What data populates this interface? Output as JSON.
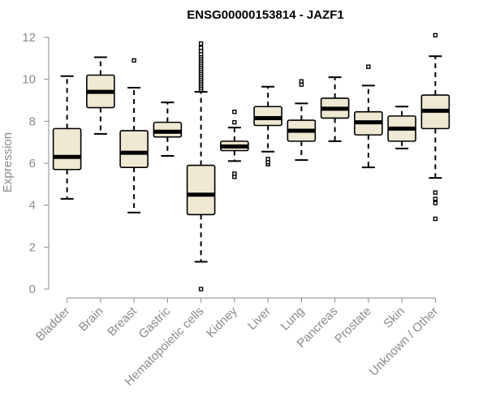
{
  "chart_data": {
    "type": "boxplot",
    "title": "ENSG00000153814 - JAZF1",
    "xlabel": "",
    "ylabel": "Expression",
    "ylim": [
      0,
      12
    ],
    "yticks": [
      0,
      2,
      4,
      6,
      8,
      10,
      12
    ],
    "grid": false,
    "legend": "none",
    "colors": {
      "box_fill": "#efe8d2",
      "stroke": "#000000",
      "axis": "#8a8a8a"
    },
    "categories": [
      "Bladder",
      "Brain",
      "Breast",
      "Gastric",
      "Hematopoietic cells",
      "Kidney",
      "Liver",
      "Lung",
      "Pancreas",
      "Prostate",
      "Skin",
      "Unknown / Other"
    ],
    "boxes": [
      {
        "category": "Bladder",
        "whisker_low": 4.3,
        "q1": 5.7,
        "median": 6.3,
        "q3": 7.65,
        "whisker_high": 10.15,
        "outliers": []
      },
      {
        "category": "Brain",
        "whisker_low": 7.4,
        "q1": 8.65,
        "median": 9.4,
        "q3": 10.2,
        "whisker_high": 11.05,
        "outliers": []
      },
      {
        "category": "Breast",
        "whisker_low": 3.65,
        "q1": 5.8,
        "median": 6.5,
        "q3": 7.55,
        "whisker_high": 9.6,
        "outliers": [
          10.9
        ]
      },
      {
        "category": "Gastric",
        "whisker_low": 6.35,
        "q1": 7.25,
        "median": 7.5,
        "q3": 7.95,
        "whisker_high": 8.9,
        "outliers": []
      },
      {
        "category": "Hematopoietic cells",
        "whisker_low": 1.3,
        "q1": 3.55,
        "median": 4.5,
        "q3": 5.9,
        "whisker_high": 9.4,
        "outliers": [
          0.0,
          9.5,
          9.6,
          9.7,
          9.8,
          9.9,
          10.0,
          10.1,
          10.2,
          10.3,
          10.4,
          10.5,
          10.6,
          10.7,
          10.8,
          10.9,
          11.0,
          11.1,
          11.2,
          11.35,
          11.5,
          11.7
        ]
      },
      {
        "category": "Kidney",
        "whisker_low": 6.1,
        "q1": 6.6,
        "median": 6.8,
        "q3": 7.05,
        "whisker_high": 7.7,
        "outliers": [
          5.35,
          5.5,
          7.95,
          8.45
        ]
      },
      {
        "category": "Liver",
        "whisker_low": 6.55,
        "q1": 7.8,
        "median": 8.15,
        "q3": 8.7,
        "whisker_high": 9.65,
        "outliers": [
          5.95,
          6.05,
          6.2
        ]
      },
      {
        "category": "Lung",
        "whisker_low": 6.15,
        "q1": 7.05,
        "median": 7.55,
        "q3": 8.05,
        "whisker_high": 8.85,
        "outliers": [
          9.75,
          9.9
        ]
      },
      {
        "category": "Pancreas",
        "whisker_low": 7.05,
        "q1": 8.15,
        "median": 8.6,
        "q3": 9.1,
        "whisker_high": 10.1,
        "outliers": []
      },
      {
        "category": "Prostate",
        "whisker_low": 5.8,
        "q1": 7.35,
        "median": 7.95,
        "q3": 8.45,
        "whisker_high": 9.7,
        "outliers": [
          10.6
        ]
      },
      {
        "category": "Skin",
        "whisker_low": 6.7,
        "q1": 7.05,
        "median": 7.65,
        "q3": 8.25,
        "whisker_high": 8.7,
        "outliers": []
      },
      {
        "category": "Unknown / Other",
        "whisker_low": 5.3,
        "q1": 7.65,
        "median": 8.5,
        "q3": 9.25,
        "whisker_high": 11.1,
        "outliers": [
          3.35,
          4.1,
          4.3,
          4.6,
          12.1
        ]
      }
    ]
  }
}
